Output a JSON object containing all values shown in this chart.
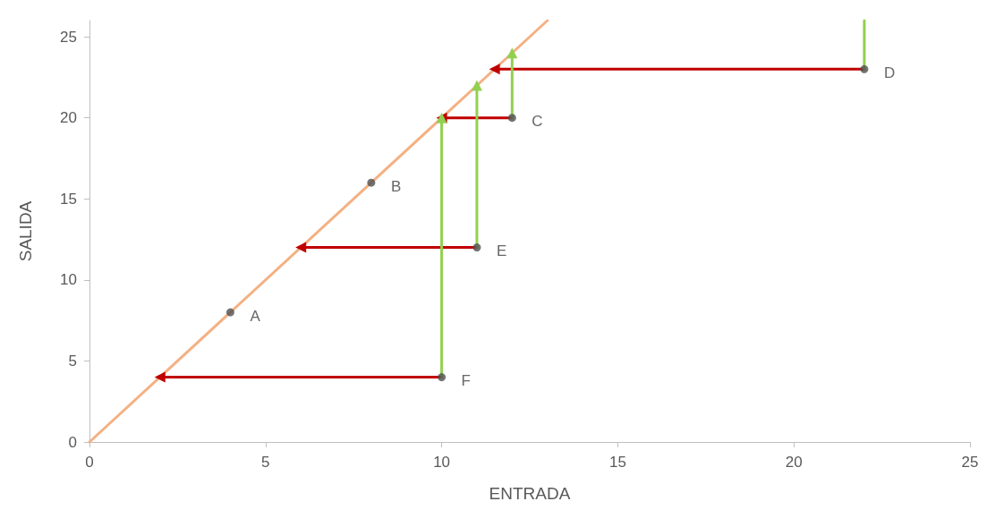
{
  "chart_data": {
    "type": "scatter",
    "xlabel": "ENTRADA",
    "ylabel": "SALIDA",
    "xlim": [
      0,
      25
    ],
    "xticks": [
      0,
      5,
      10,
      15,
      20,
      25
    ],
    "ylim": [
      0,
      26
    ],
    "yticks": [
      0,
      5,
      10,
      15,
      20,
      25
    ],
    "grid": false,
    "marker": "circle",
    "series": [
      {
        "type": "line",
        "color": "#f4b183",
        "x": [
          0,
          13
        ],
        "values": [
          0,
          26
        ],
        "marker": "none"
      },
      {
        "type": "line",
        "color": "#c00000",
        "x": [
          10,
          2
        ],
        "values": [
          4,
          4
        ],
        "marker": "triangle"
      },
      {
        "type": "line",
        "color": "#c00000",
        "x": [
          11,
          6
        ],
        "values": [
          12,
          12
        ],
        "marker": "triangle"
      },
      {
        "type": "line",
        "color": "#c00000",
        "x": [
          12,
          10
        ],
        "values": [
          20,
          20
        ],
        "marker": "triangle"
      },
      {
        "type": "line",
        "color": "#c00000",
        "x": [
          22,
          11.5
        ],
        "values": [
          23,
          23
        ],
        "marker": "triangle"
      },
      {
        "type": "line",
        "color": "#92d050",
        "x": [
          10,
          10
        ],
        "values": [
          4,
          20
        ],
        "marker": "triangle"
      },
      {
        "type": "line",
        "color": "#92d050",
        "x": [
          11,
          11
        ],
        "values": [
          12,
          22
        ],
        "marker": "triangle"
      },
      {
        "type": "line",
        "color": "#92d050",
        "x": [
          12,
          12
        ],
        "values": [
          20,
          24
        ],
        "marker": "triangle"
      },
      {
        "type": "line",
        "color": "#92d050",
        "x": [
          22,
          22
        ],
        "values": [
          23,
          26
        ],
        "marker": "none"
      },
      {
        "color": "#505050",
        "x": [
          4,
          8,
          12,
          22,
          11,
          10
        ],
        "values": [
          8,
          16,
          20,
          23,
          12,
          4
        ]
      }
    ],
    "annotations": [
      {
        "text": "A",
        "x": 4,
        "y": 8
      },
      {
        "text": "B",
        "x": 8,
        "y": 16
      },
      {
        "text": "C",
        "x": 12,
        "y": 20
      },
      {
        "text": "D",
        "x": 22,
        "y": 23
      },
      {
        "text": "E",
        "x": 11,
        "y": 12
      },
      {
        "text": "F",
        "x": 10,
        "y": 4
      }
    ]
  }
}
